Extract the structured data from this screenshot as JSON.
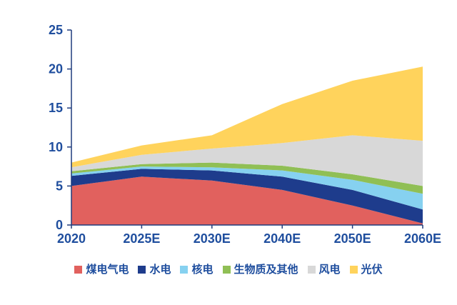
{
  "chart_data": {
    "type": "area",
    "stacked": true,
    "title": "",
    "xlabel": "",
    "ylabel": "",
    "x": [
      "2020",
      "2025E",
      "2030E",
      "2040E",
      "2050E",
      "2060E"
    ],
    "series": [
      {
        "name": "煤电气电",
        "color": "#E1615E",
        "values": [
          5.0,
          6.2,
          5.7,
          4.5,
          2.5,
          0.2
        ]
      },
      {
        "name": "水电",
        "color": "#1E3C8C",
        "values": [
          1.3,
          1.0,
          1.3,
          1.7,
          2.0,
          1.8
        ]
      },
      {
        "name": "核电",
        "color": "#86D1F0",
        "values": [
          0.3,
          0.3,
          0.4,
          0.8,
          1.3,
          2.0
        ]
      },
      {
        "name": "生物质及其他",
        "color": "#90BF55",
        "values": [
          0.3,
          0.3,
          0.6,
          0.6,
          0.7,
          1.0
        ]
      },
      {
        "name": "风电",
        "color": "#D8D8D8",
        "values": [
          0.5,
          1.2,
          1.8,
          2.9,
          5.0,
          5.8
        ]
      },
      {
        "name": "光伏",
        "color": "#FFD35C",
        "values": [
          0.6,
          1.2,
          1.7,
          5.0,
          7.0,
          9.5
        ]
      }
    ],
    "totals": [
      8.0,
      10.2,
      11.5,
      15.5,
      18.5,
      20.3
    ],
    "ylim": [
      0,
      25
    ],
    "yticks": [
      0,
      5,
      10,
      15,
      20,
      25
    ],
    "grid": false,
    "legend_position": "bottom",
    "axis_color": "#1F3C7D",
    "tick_label_color": "#1F4E9E",
    "background_color": "#FFFFFF"
  }
}
